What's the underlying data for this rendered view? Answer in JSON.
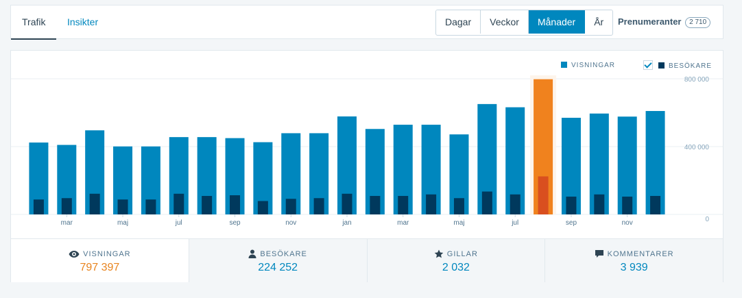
{
  "tabs": [
    {
      "label": "Trafik"
    },
    {
      "label": "Insikter"
    }
  ],
  "period": {
    "options": [
      "Dagar",
      "Veckor",
      "Månader",
      "År"
    ],
    "selected": "Månader"
  },
  "subscribers": {
    "label": "Prenumeranter",
    "count": "2 710"
  },
  "legend": {
    "views": "VISNINGAR",
    "visitors": "BESÖKARE",
    "visitors_checked": true
  },
  "colors": {
    "views": "#0087be",
    "visitors": "#00395d",
    "highlight": "#f0821e",
    "highlight_visitors": "#d94f1f",
    "highlight_bg": "#fdf4eb"
  },
  "chart_data": {
    "type": "bar",
    "x_tick_labels": [
      "mar",
      "maj",
      "jul",
      "sep",
      "nov",
      "jan",
      "mar",
      "maj",
      "jul",
      "sep",
      "nov"
    ],
    "y_tick_labels": [
      "800 000",
      "400 000",
      "0"
    ],
    "ylim": [
      0,
      800000
    ],
    "series": [
      {
        "name": "VISNINGAR",
        "values": [
          424000,
          410000,
          496000,
          401000,
          401000,
          456000,
          456000,
          450000,
          426000,
          479000,
          479000,
          578000,
          504000,
          529000,
          529000,
          472000,
          651000,
          632000,
          797397,
          570000,
          595000,
          577000,
          610000
        ]
      },
      {
        "name": "BESÖKARE",
        "values": [
          88000,
          96000,
          122000,
          88000,
          88000,
          122000,
          109000,
          113000,
          79000,
          92000,
          96000,
          122000,
          109000,
          109000,
          118000,
          96000,
          135000,
          118000,
          224252,
          105000,
          118000,
          105000,
          109000
        ]
      }
    ],
    "highlight_index": 18
  },
  "summary": [
    {
      "icon": "eye-icon",
      "label": "VISNINGAR",
      "value": "797 397"
    },
    {
      "icon": "person-icon",
      "label": "BESÖKARE",
      "value": "224 252"
    },
    {
      "icon": "star-icon",
      "label": "GILLAR",
      "value": "2 032"
    },
    {
      "icon": "comment-icon",
      "label": "KOMMENTARER",
      "value": "3 939"
    }
  ]
}
